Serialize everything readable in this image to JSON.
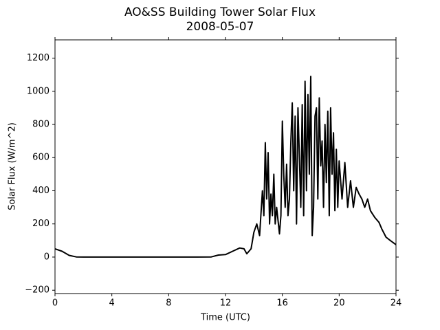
{
  "chart_data": {
    "type": "line",
    "title": "AO&SS Building Tower Solar Flux",
    "subtitle": "2008-05-07",
    "x_label": "Time (UTC)",
    "y_label": "Solar Flux (W/m^2)",
    "xlim": [
      0,
      24
    ],
    "xticks": [
      0,
      4,
      8,
      12,
      16,
      20,
      24
    ],
    "ylim": [
      -220,
      1310
    ],
    "yticks": [
      {
        "value": -200,
        "label": "−200"
      },
      0,
      200,
      400,
      600,
      800,
      1000,
      1200
    ],
    "grid": false,
    "x": [
      0,
      0.5,
      1,
      1.5,
      2,
      4,
      6,
      8,
      10,
      11,
      11.5,
      12,
      12.5,
      13,
      13.3,
      13.5,
      13.8,
      14,
      14.2,
      14.4,
      14.6,
      14.7,
      14.8,
      14.9,
      15.0,
      15.1,
      15.2,
      15.3,
      15.4,
      15.5,
      15.6,
      15.8,
      15.9,
      16.0,
      16.1,
      16.2,
      16.3,
      16.4,
      16.5,
      16.6,
      16.7,
      16.8,
      16.9,
      17.0,
      17.1,
      17.2,
      17.3,
      17.4,
      17.5,
      17.6,
      17.7,
      17.8,
      17.9,
      18.0,
      18.1,
      18.2,
      18.3,
      18.4,
      18.5,
      18.6,
      18.7,
      18.8,
      18.9,
      19.0,
      19.1,
      19.2,
      19.3,
      19.4,
      19.5,
      19.6,
      19.7,
      19.8,
      19.9,
      20.0,
      20.2,
      20.4,
      20.6,
      20.8,
      21.0,
      21.2,
      21.4,
      21.6,
      21.8,
      22.0,
      22.2,
      22.5,
      22.8,
      23.0,
      23.3,
      23.6,
      24
    ],
    "series": [
      {
        "color": "#000000",
        "values": [
          50,
          35,
          10,
          1,
          0,
          0,
          0,
          0,
          0,
          1,
          12,
          15,
          35,
          55,
          50,
          20,
          50,
          150,
          200,
          130,
          400,
          250,
          690,
          350,
          630,
          200,
          380,
          250,
          500,
          200,
          300,
          140,
          250,
          820,
          500,
          300,
          560,
          250,
          350,
          700,
          930,
          400,
          850,
          200,
          900,
          600,
          300,
          920,
          250,
          1060,
          400,
          980,
          500,
          1090,
          130,
          300,
          850,
          900,
          350,
          960,
          550,
          700,
          300,
          800,
          450,
          880,
          250,
          900,
          500,
          750,
          280,
          650,
          300,
          580,
          350,
          570,
          300,
          460,
          300,
          420,
          380,
          350,
          300,
          350,
          280,
          240,
          210,
          170,
          120,
          100,
          75
        ]
      }
    ]
  }
}
